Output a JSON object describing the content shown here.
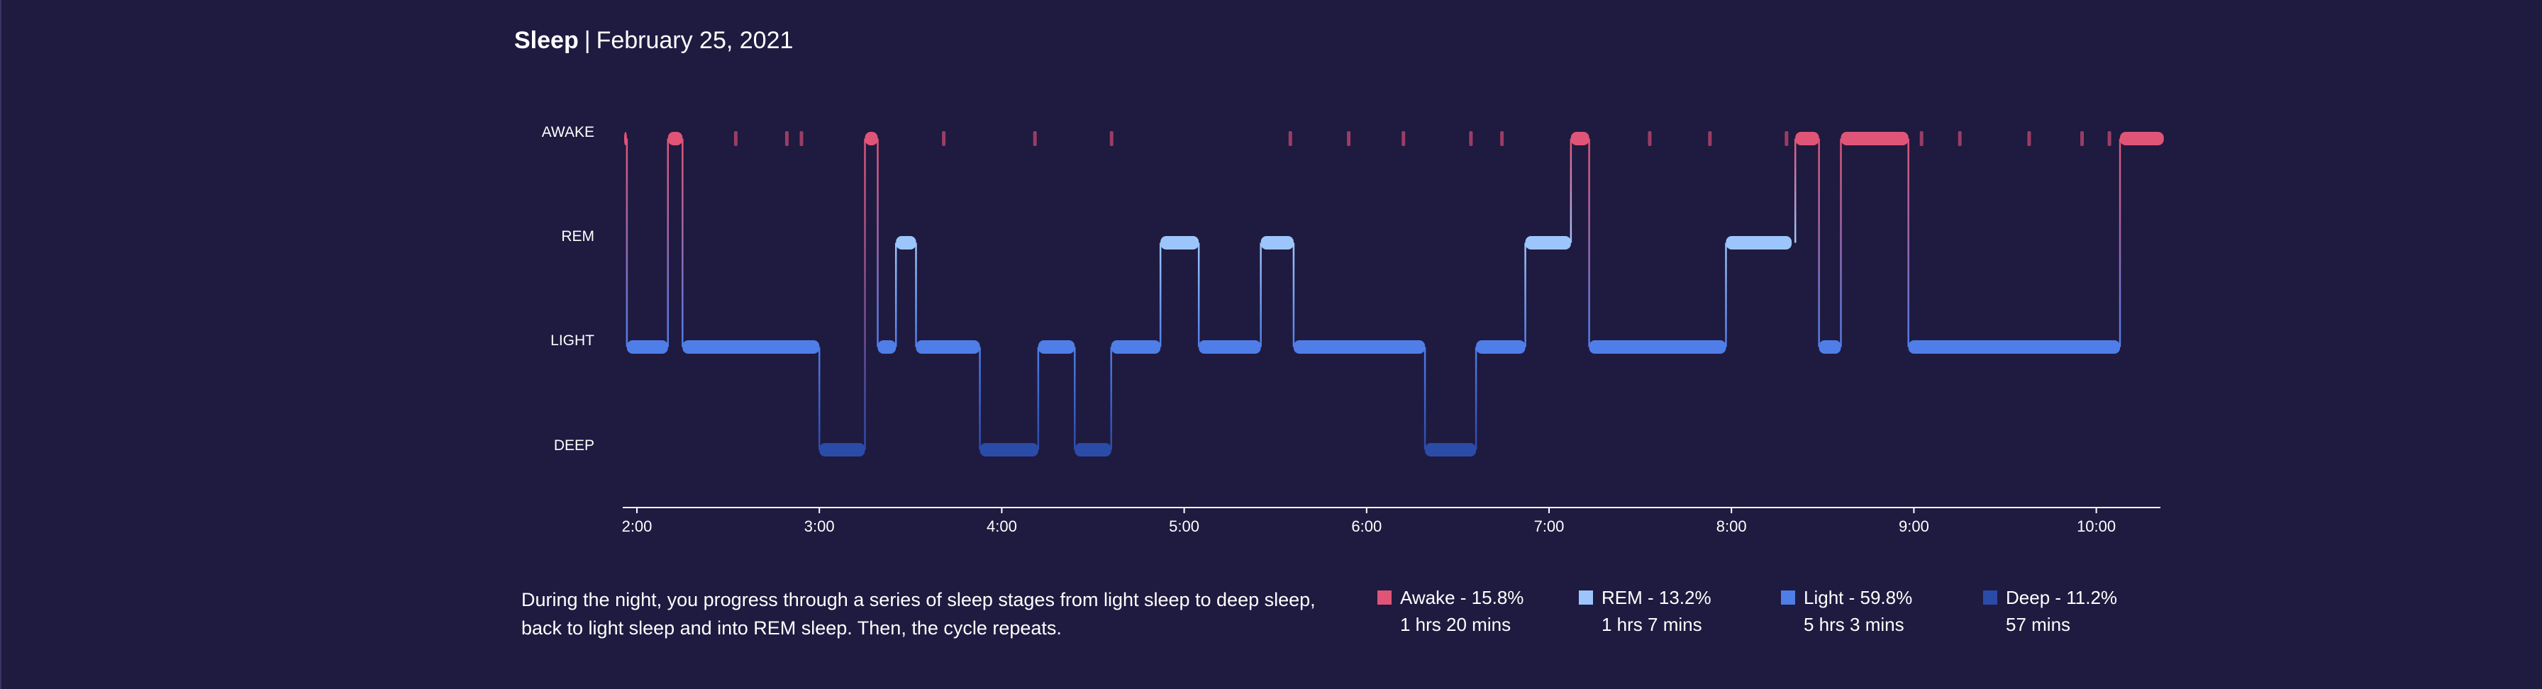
{
  "header": {
    "title": "Sleep",
    "separator": "|",
    "date": "February 25, 2021"
  },
  "description": "During the night, you progress through a series of sleep stages from light sleep to deep sleep, back to light sleep and into REM sleep. Then, the cycle repeats.",
  "colors": {
    "background": "#1f1a3f",
    "awake": "#e05577",
    "rem": "#9cc6fb",
    "light": "#4f7ee8",
    "deep": "#2b4ba8",
    "axis": "#ffffff"
  },
  "legend": [
    {
      "label": "Awake - 15.8%",
      "duration": "1 hrs 20 mins",
      "color": "#e05577"
    },
    {
      "label": "REM - 13.2%",
      "duration": "1 hrs 7 mins",
      "color": "#9cc6fb"
    },
    {
      "label": "Light - 59.8%",
      "duration": "5 hrs 3 mins",
      "color": "#4f7ee8"
    },
    {
      "label": "Deep - 11.2%",
      "duration": "57 mins",
      "color": "#2b4ba8"
    }
  ],
  "chart_data": {
    "type": "line",
    "subtype": "sleep-stage-hypnogram",
    "stages": [
      "AWAKE",
      "REM",
      "LIGHT",
      "DEEP"
    ],
    "x_ticks": [
      "2:00",
      "3:00",
      "4:00",
      "5:00",
      "6:00",
      "7:00",
      "8:00",
      "9:00",
      "10:00"
    ],
    "x_range_hours": [
      1.92,
      10.38
    ],
    "segments": [
      {
        "stage": "AWAKE",
        "start": 1.93,
        "end": 1.945
      },
      {
        "stage": "LIGHT",
        "start": 1.945,
        "end": 2.17
      },
      {
        "stage": "AWAKE",
        "start": 2.17,
        "end": 2.25
      },
      {
        "stage": "LIGHT",
        "start": 2.25,
        "end": 3.0
      },
      {
        "stage": "DEEP",
        "start": 3.0,
        "end": 3.25
      },
      {
        "stage": "AWAKE",
        "start": 3.25,
        "end": 3.32
      },
      {
        "stage": "LIGHT",
        "start": 3.32,
        "end": 3.42
      },
      {
        "stage": "REM",
        "start": 3.42,
        "end": 3.53
      },
      {
        "stage": "LIGHT",
        "start": 3.53,
        "end": 3.88
      },
      {
        "stage": "DEEP",
        "start": 3.88,
        "end": 4.2
      },
      {
        "stage": "LIGHT",
        "start": 4.2,
        "end": 4.4
      },
      {
        "stage": "DEEP",
        "start": 4.4,
        "end": 4.6
      },
      {
        "stage": "LIGHT",
        "start": 4.6,
        "end": 4.87
      },
      {
        "stage": "REM",
        "start": 4.87,
        "end": 5.08
      },
      {
        "stage": "LIGHT",
        "start": 5.08,
        "end": 5.42
      },
      {
        "stage": "REM",
        "start": 5.42,
        "end": 5.6
      },
      {
        "stage": "LIGHT",
        "start": 5.6,
        "end": 6.32
      },
      {
        "stage": "DEEP",
        "start": 6.32,
        "end": 6.6
      },
      {
        "stage": "LIGHT",
        "start": 6.6,
        "end": 6.87
      },
      {
        "stage": "REM",
        "start": 6.87,
        "end": 7.12
      },
      {
        "stage": "AWAKE",
        "start": 7.12,
        "end": 7.22
      },
      {
        "stage": "LIGHT",
        "start": 7.22,
        "end": 7.97
      },
      {
        "stage": "REM",
        "start": 7.97,
        "end": 8.33
      },
      {
        "stage": "AWAKE",
        "start": 8.35,
        "end": 8.48
      },
      {
        "stage": "LIGHT",
        "start": 8.48,
        "end": 8.6
      },
      {
        "stage": "AWAKE",
        "start": 8.6,
        "end": 8.97
      },
      {
        "stage": "LIGHT",
        "start": 8.97,
        "end": 10.13
      },
      {
        "stage": "AWAKE",
        "start": 10.13,
        "end": 10.37
      }
    ],
    "awake_ticks": [
      2.54,
      2.82,
      2.9,
      3.68,
      4.18,
      4.6,
      5.58,
      5.9,
      6.2,
      6.57,
      6.74,
      7.55,
      7.88,
      8.3,
      9.04,
      9.25,
      9.63,
      9.92,
      10.07
    ]
  }
}
